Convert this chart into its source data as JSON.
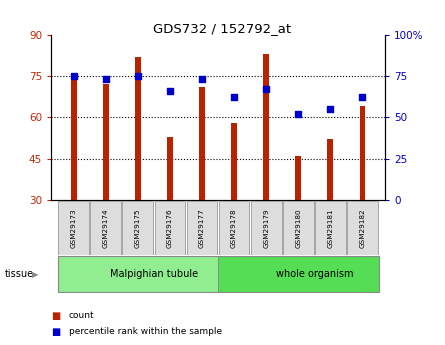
{
  "title": "GDS732 / 152792_at",
  "samples": [
    "GSM29173",
    "GSM29174",
    "GSM29175",
    "GSM29176",
    "GSM29177",
    "GSM29178",
    "GSM29179",
    "GSM29180",
    "GSM29181",
    "GSM29182"
  ],
  "count_values": [
    74,
    72,
    82,
    53,
    71,
    58,
    83,
    46,
    52,
    64
  ],
  "percentile_values": [
    75,
    73,
    75,
    66,
    73,
    62,
    67,
    52,
    55,
    62
  ],
  "ylim_left": [
    30,
    90
  ],
  "ylim_right": [
    0,
    100
  ],
  "yticks_left": [
    30,
    45,
    60,
    75,
    90
  ],
  "yticks_right": [
    0,
    25,
    50,
    75,
    100
  ],
  "ytick_labels_right": [
    "0",
    "25",
    "50",
    "75",
    "100%"
  ],
  "tissue_groups": [
    {
      "label": "Malpighian tubule",
      "start": 0,
      "end": 5,
      "color": "#90EE90"
    },
    {
      "label": "whole organism",
      "start": 5,
      "end": 10,
      "color": "#55DD55"
    }
  ],
  "bar_color": "#BB2200",
  "dot_color": "#0000CC",
  "bar_bottom": 30,
  "bar_width": 0.18,
  "bg_color": "#FFFFFF",
  "tick_label_color_left": "#CC2200",
  "tick_label_color_right": "#0000CC",
  "tissue_label": "tissue",
  "legend_count_label": "count",
  "legend_pct_label": "percentile rank within the sample"
}
